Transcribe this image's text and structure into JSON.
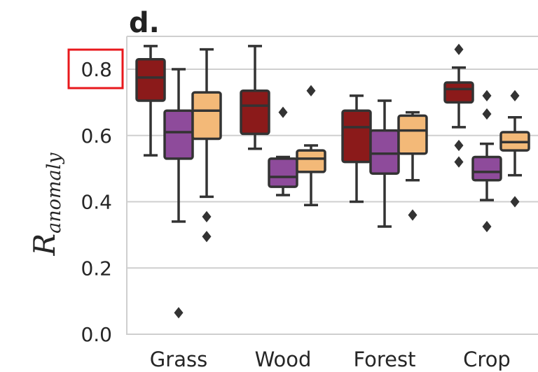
{
  "panel_label": "d.",
  "chart_data": {
    "type": "box",
    "ylabel": "R",
    "ylabel_subscript": "anomaly",
    "ylim": [
      0.0,
      0.9
    ],
    "yticks": [
      0.0,
      0.2,
      0.4,
      0.6,
      0.8
    ],
    "ytick_labels": [
      "0.0",
      "0.2",
      "0.4",
      "0.6",
      "0.8"
    ],
    "highlighted_tick": "0.8",
    "highlight_color": "#e8181c",
    "grid": "horizontal",
    "categories": [
      "Grass",
      "Wood",
      "Forest",
      "Crop"
    ],
    "series": [
      {
        "color": "#8b1a1a",
        "boxes": [
          {
            "whislo": 0.54,
            "q1": 0.705,
            "med": 0.775,
            "q3": 0.83,
            "whishi": 0.87,
            "fliers": []
          },
          {
            "whislo": 0.56,
            "q1": 0.605,
            "med": 0.69,
            "q3": 0.735,
            "whishi": 0.87,
            "fliers": []
          },
          {
            "whislo": 0.4,
            "q1": 0.52,
            "med": 0.625,
            "q3": 0.675,
            "whishi": 0.72,
            "fliers": []
          },
          {
            "whislo": 0.625,
            "q1": 0.7,
            "med": 0.74,
            "q3": 0.76,
            "whishi": 0.805,
            "fliers": [
              0.86,
              0.57,
              0.52
            ]
          }
        ]
      },
      {
        "color": "#8e4b9b",
        "boxes": [
          {
            "whislo": 0.34,
            "q1": 0.53,
            "med": 0.61,
            "q3": 0.675,
            "whishi": 0.8,
            "fliers": [
              0.065
            ]
          },
          {
            "whislo": 0.42,
            "q1": 0.445,
            "med": 0.475,
            "q3": 0.53,
            "whishi": 0.535,
            "fliers": [
              0.67
            ]
          },
          {
            "whislo": 0.325,
            "q1": 0.485,
            "med": 0.545,
            "q3": 0.615,
            "whishi": 0.705,
            "fliers": []
          },
          {
            "whislo": 0.405,
            "q1": 0.465,
            "med": 0.49,
            "q3": 0.535,
            "whishi": 0.575,
            "fliers": [
              0.72,
              0.665,
              0.325
            ]
          }
        ]
      },
      {
        "color": "#f3b978",
        "boxes": [
          {
            "whislo": 0.415,
            "q1": 0.59,
            "med": 0.675,
            "q3": 0.73,
            "whishi": 0.86,
            "fliers": [
              0.355,
              0.295
            ]
          },
          {
            "whislo": 0.39,
            "q1": 0.49,
            "med": 0.53,
            "q3": 0.555,
            "whishi": 0.57,
            "fliers": [
              0.735
            ]
          },
          {
            "whislo": 0.465,
            "q1": 0.545,
            "med": 0.615,
            "q3": 0.66,
            "whishi": 0.67,
            "fliers": [
              0.36
            ]
          },
          {
            "whislo": 0.48,
            "q1": 0.555,
            "med": 0.58,
            "q3": 0.61,
            "whishi": 0.655,
            "fliers": [
              0.72,
              0.4
            ]
          }
        ]
      }
    ]
  }
}
